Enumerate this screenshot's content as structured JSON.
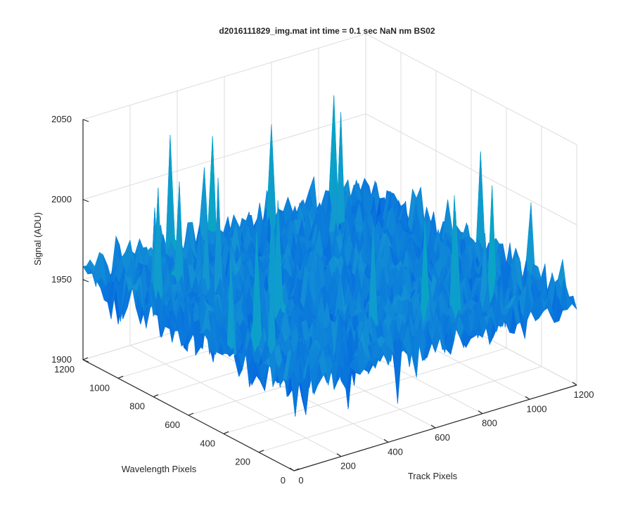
{
  "chart_data": {
    "type": "surface",
    "title": "d2016111829_img.mat int time = 0.1 sec  NaN nm BS02",
    "xlabel": "Track Pixels",
    "ylabel": "Wavelength Pixels",
    "zlabel": "Signal (ADU)",
    "xlim": [
      0,
      1200
    ],
    "ylim": [
      0,
      1200
    ],
    "zlim": [
      1900,
      2050
    ],
    "xticks": [
      "0",
      "200",
      "400",
      "600",
      "800",
      "1000",
      "1200"
    ],
    "yticks": [
      "0",
      "200",
      "400",
      "600",
      "800",
      "1000",
      "1200"
    ],
    "zticks": [
      "1900",
      "1950",
      "2000",
      "2050"
    ],
    "grid": true,
    "colormap": "parula",
    "surface_summary": {
      "baseline_signal": 1953,
      "noise_range": [
        1925,
        1985
      ],
      "max_spike": 2028,
      "min_dip": 1920
    }
  }
}
